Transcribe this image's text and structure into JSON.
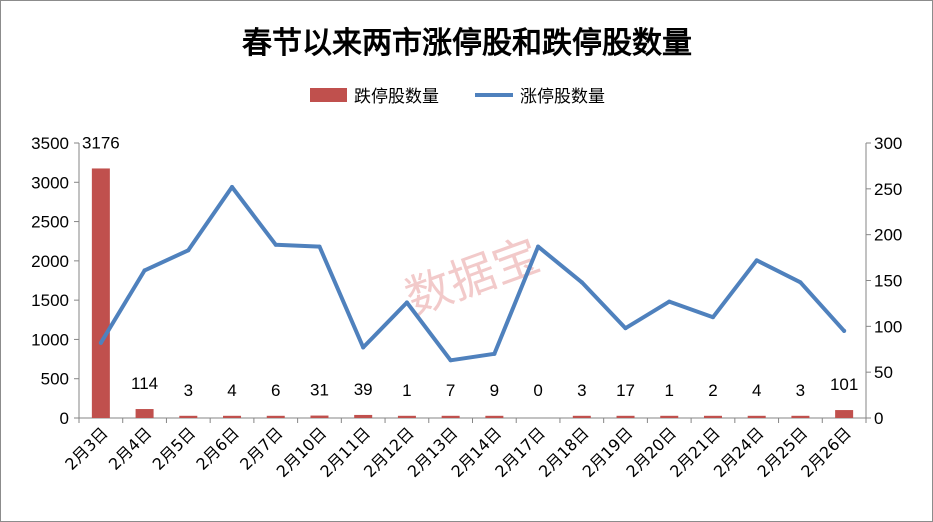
{
  "chart_data": {
    "type": "bar+line",
    "title": "春节以来两市涨停股和跌停股数量",
    "categories": [
      "2月3日",
      "2月4日",
      "2月5日",
      "2月6日",
      "2月7日",
      "2月10日",
      "2月11日",
      "2月12日",
      "2月13日",
      "2月14日",
      "2月17日",
      "2月18日",
      "2月19日",
      "2月20日",
      "2月21日",
      "2月24日",
      "2月25日",
      "2月26日"
    ],
    "series": [
      {
        "name": "跌停股数量",
        "type": "bar",
        "axis": "left",
        "color": "#c0504d",
        "values": [
          3176,
          114,
          3,
          4,
          6,
          31,
          39,
          1,
          7,
          9,
          0,
          3,
          17,
          1,
          2,
          4,
          3,
          101
        ],
        "labels": [
          "3176",
          "114",
          "3",
          "4",
          "6",
          "31",
          "39",
          "1",
          "7",
          "9",
          "0",
          "3",
          "17",
          "1",
          "2",
          "4",
          "3",
          "101"
        ]
      },
      {
        "name": "涨停股数量",
        "type": "line",
        "axis": "right",
        "color": "#4f81bd",
        "values": [
          82,
          161,
          183,
          252,
          189,
          187,
          77,
          126,
          63,
          70,
          187,
          148,
          98,
          127,
          110,
          172,
          148,
          95
        ]
      }
    ],
    "y_left": {
      "min": 0,
      "max": 3500,
      "ticks": [
        "0",
        "500",
        "1000",
        "1500",
        "2000",
        "2500",
        "3000",
        "3500"
      ]
    },
    "y_right": {
      "min": 0,
      "max": 300,
      "ticks": [
        "0",
        "50",
        "100",
        "150",
        "200",
        "250",
        "300"
      ]
    },
    "legend_position": "top",
    "grid": false,
    "watermark": "数据宝"
  }
}
